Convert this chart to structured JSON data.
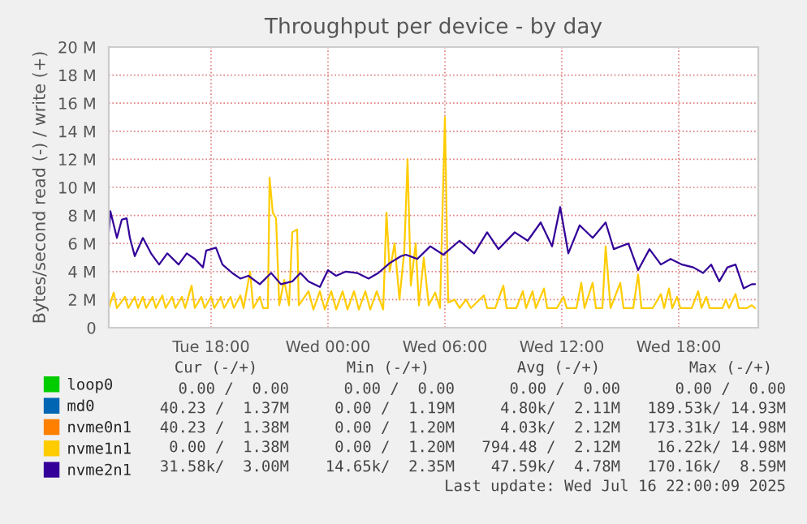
{
  "chart_data": {
    "type": "line",
    "title": "Throughput per device - by day",
    "ylabel": "Bytes/second read (-) / write (+)",
    "x": [
      "2025-07-15T12:45",
      "2025-07-15T13:00",
      "2025-07-15T13:10",
      "2025-07-15T13:35",
      "2025-07-15T13:45",
      "2025-07-15T14:05",
      "2025-07-15T14:15",
      "2025-07-15T14:30",
      "2025-07-15T14:40",
      "2025-07-15T15:00",
      "2025-07-15T15:10",
      "2025-07-15T15:30",
      "2025-07-15T15:40",
      "2025-07-15T16:00",
      "2025-07-15T16:10",
      "2025-07-15T16:30",
      "2025-07-15T16:40",
      "2025-07-15T17:00",
      "2025-07-15T17:10",
      "2025-07-15T17:30",
      "2025-07-15T17:40",
      "2025-07-15T18:00",
      "2025-07-15T18:10",
      "2025-07-15T18:30",
      "2025-07-15T18:40",
      "2025-07-15T19:00",
      "2025-07-15T19:10",
      "2025-07-15T19:30",
      "2025-07-15T19:40",
      "2025-07-15T20:00",
      "2025-07-15T20:10",
      "2025-07-15T20:30",
      "2025-07-15T20:40",
      "2025-07-15T20:55",
      "2025-07-15T21:00",
      "2025-07-15T21:10",
      "2025-07-15T21:20",
      "2025-07-15T21:30",
      "2025-07-15T21:45",
      "2025-07-15T22:00",
      "2025-07-15T22:10",
      "2025-07-15T22:25",
      "2025-07-15T22:30",
      "2025-07-15T23:00",
      "2025-07-15T23:15",
      "2025-07-15T23:35",
      "2025-07-15T23:50",
      "2025-07-16T00:10",
      "2025-07-16T00:25",
      "2025-07-16T00:45",
      "2025-07-16T01:00",
      "2025-07-16T01:20",
      "2025-07-16T01:35",
      "2025-07-16T01:55",
      "2025-07-16T02:10",
      "2025-07-16T02:30",
      "2025-07-16T02:50",
      "2025-07-16T03:00",
      "2025-07-16T03:10",
      "2025-07-16T03:25",
      "2025-07-16T03:40",
      "2025-07-16T03:55",
      "2025-07-16T04:05",
      "2025-07-16T04:15",
      "2025-07-16T04:30",
      "2025-07-16T04:40",
      "2025-07-16T04:55",
      "2025-07-16T05:10",
      "2025-07-16T05:30",
      "2025-07-16T05:45",
      "2025-07-16T06:00",
      "2025-07-16T06:10",
      "2025-07-16T06:30",
      "2025-07-16T06:45",
      "2025-07-16T07:05",
      "2025-07-16T07:20",
      "2025-07-16T08:00",
      "2025-07-16T08:10",
      "2025-07-16T08:35",
      "2025-07-16T09:00",
      "2025-07-16T09:10",
      "2025-07-16T09:40",
      "2025-07-16T10:00",
      "2025-07-16T10:10",
      "2025-07-16T10:30",
      "2025-07-16T10:40",
      "2025-07-16T11:05",
      "2025-07-16T11:15",
      "2025-07-16T11:45",
      "2025-07-16T12:05",
      "2025-07-16T12:15",
      "2025-07-16T12:45",
      "2025-07-16T13:00",
      "2025-07-16T13:10",
      "2025-07-16T13:35",
      "2025-07-16T13:45",
      "2025-07-16T14:05",
      "2025-07-16T14:15",
      "2025-07-16T14:30",
      "2025-07-16T15:00",
      "2025-07-16T15:10",
      "2025-07-16T15:40",
      "2025-07-16T15:55",
      "2025-07-16T16:05",
      "2025-07-16T16:40",
      "2025-07-16T17:05",
      "2025-07-16T17:15",
      "2025-07-16T17:30",
      "2025-07-16T17:40",
      "2025-07-16T17:55",
      "2025-07-16T18:05",
      "2025-07-16T18:40",
      "2025-07-16T19:00",
      "2025-07-16T19:10",
      "2025-07-16T19:25",
      "2025-07-16T19:35",
      "2025-07-16T20:15",
      "2025-07-16T20:25",
      "2025-07-16T20:35",
      "2025-07-16T20:55",
      "2025-07-16T21:05",
      "2025-07-16T21:30",
      "2025-07-16T21:45",
      "2025-07-16T21:55"
    ],
    "series": [
      {
        "name": "loop0",
        "color": "#00cc00",
        "values": [
          null,
          null,
          null,
          null,
          null,
          null,
          null,
          null,
          null,
          null,
          null,
          null,
          null,
          null,
          null,
          null,
          null,
          null,
          null,
          null,
          null,
          null,
          null,
          null,
          null,
          null,
          null,
          null,
          null,
          null,
          null,
          null,
          null,
          null,
          null,
          null,
          null,
          null,
          null,
          null,
          null,
          null,
          null,
          null,
          null,
          null,
          null,
          null,
          null,
          null,
          null,
          null,
          null,
          null,
          null,
          null,
          null,
          null,
          null,
          null,
          null,
          null,
          null,
          null,
          null,
          null,
          null,
          null,
          null,
          null,
          null,
          null,
          null,
          null,
          null,
          null,
          null,
          null,
          null,
          null,
          null,
          null,
          null,
          null,
          null,
          null,
          null,
          null,
          null,
          null,
          null,
          null,
          null,
          null,
          null,
          null,
          null,
          null,
          null,
          null,
          null,
          null,
          null,
          null,
          null,
          null,
          null,
          null,
          null,
          null,
          null,
          null,
          null,
          null,
          null,
          null,
          null,
          null,
          null,
          null,
          null,
          null,
          null,
          null
        ]
      },
      {
        "name": "md0",
        "color": "#0066b3",
        "values": [
          null,
          null,
          null,
          null,
          null,
          null,
          null,
          null,
          null,
          null,
          null,
          null,
          null,
          null,
          null,
          null,
          null,
          null,
          null,
          null,
          null,
          null,
          null,
          null,
          null,
          null,
          null,
          null,
          null,
          null,
          null,
          null,
          null,
          null,
          null,
          null,
          null,
          null,
          null,
          null,
          null,
          null,
          null,
          null,
          null,
          null,
          null,
          null,
          null,
          null,
          null,
          null,
          null,
          null,
          null,
          null,
          null,
          null,
          null,
          null,
          null,
          null,
          null,
          null,
          null,
          null,
          null,
          null,
          null,
          null,
          null,
          null,
          null,
          null,
          null,
          null,
          null,
          null,
          null,
          null,
          null,
          null,
          null,
          null,
          null,
          null,
          null,
          null,
          null,
          null,
          null,
          null,
          null,
          null,
          null,
          null,
          null,
          null,
          null,
          null,
          null,
          null,
          null,
          null,
          null,
          null,
          null,
          null,
          null,
          null,
          null,
          null,
          null,
          null,
          null,
          null,
          null,
          null,
          null,
          null,
          null,
          null,
          null,
          null
        ]
      },
      {
        "name": "nvme0n1",
        "color": "#ff8000",
        "values": [
          null,
          null,
          null,
          null,
          null,
          null,
          null,
          null,
          null,
          null,
          null,
          null,
          null,
          null,
          null,
          null,
          null,
          null,
          null,
          null,
          null,
          null,
          null,
          null,
          null,
          null,
          null,
          null,
          null,
          null,
          null,
          null,
          null,
          null,
          null,
          null,
          null,
          null,
          null,
          null,
          null,
          null,
          null,
          null,
          null,
          null,
          null,
          null,
          null,
          null,
          null,
          null,
          null,
          null,
          null,
          null,
          null,
          null,
          null,
          null,
          null,
          null,
          null,
          null,
          null,
          null,
          null,
          null,
          null,
          null,
          null,
          null,
          null,
          null,
          null,
          null,
          null,
          null,
          null,
          null,
          null,
          null,
          null,
          null,
          null,
          null,
          null,
          null,
          null,
          null,
          null,
          null,
          null,
          null,
          null,
          null,
          null,
          null,
          null,
          null,
          null,
          null,
          null,
          null,
          null,
          null,
          null,
          null,
          null,
          null,
          null,
          null,
          null,
          null,
          null,
          null,
          null,
          null,
          null,
          null,
          null,
          null,
          null,
          null
        ]
      },
      {
        "name": "nvme1n1",
        "color": "#ffcc00",
        "values": [
          1.4,
          2.5,
          1.4,
          2.2,
          1.4,
          2.2,
          1.4,
          2.2,
          1.4,
          2.2,
          1.4,
          2.3,
          1.4,
          2.2,
          1.4,
          2.2,
          1.4,
          3.0,
          1.4,
          2.2,
          1.4,
          2.2,
          1.4,
          2.2,
          1.4,
          2.2,
          1.4,
          2.3,
          1.4,
          4.0,
          1.4,
          2.2,
          1.4,
          1.4,
          10.7,
          8.2,
          7.8,
          1.6,
          3.4,
          1.6,
          6.8,
          7.0,
          1.6,
          2.6,
          1.3,
          2.6,
          1.3,
          2.6,
          1.3,
          2.6,
          1.3,
          2.6,
          1.3,
          2.6,
          1.3,
          2.6,
          1.3,
          8.2,
          4.0,
          6.0,
          2.0,
          5.5,
          12.0,
          3.0,
          6.0,
          1.6,
          5.0,
          1.6,
          2.5,
          1.4,
          15.0,
          1.8,
          2.0,
          1.4,
          2.0,
          1.4,
          2.3,
          1.4,
          1.4,
          3.0,
          1.4,
          1.4,
          2.6,
          1.4,
          2.6,
          1.4,
          2.8,
          1.4,
          1.4,
          2.2,
          1.4,
          1.4,
          3.2,
          1.4,
          3.2,
          1.4,
          1.4,
          5.8,
          1.4,
          3.2,
          1.4,
          1.4,
          3.8,
          1.4,
          1.4,
          2.4,
          1.4,
          2.8,
          1.4,
          2.2,
          1.4,
          1.4,
          2.6,
          1.4,
          2.2,
          1.4,
          1.4,
          2.0,
          1.4,
          2.4,
          1.4,
          1.4,
          1.6,
          1.4
        ]
      },
      {
        "name": "nvme2n1",
        "color": "#330099",
        "x": [
          "2025-07-15T12:45",
          "2025-07-15T12:50",
          "2025-07-15T13:10",
          "2025-07-15T13:25",
          "2025-07-15T13:40",
          "2025-07-15T13:50",
          "2025-07-15T14:05",
          "2025-07-15T14:30",
          "2025-07-15T14:55",
          "2025-07-15T15:20",
          "2025-07-15T15:45",
          "2025-07-15T16:20",
          "2025-07-15T16:45",
          "2025-07-15T17:10",
          "2025-07-15T17:35",
          "2025-07-15T17:45",
          "2025-07-15T18:15",
          "2025-07-15T18:35",
          "2025-07-15T19:05",
          "2025-07-15T19:30",
          "2025-07-15T19:55",
          "2025-07-15T20:30",
          "2025-07-15T21:05",
          "2025-07-15T21:35",
          "2025-07-15T22:10",
          "2025-07-15T22:35",
          "2025-07-15T23:00",
          "2025-07-15T23:35",
          "2025-07-16T00:00",
          "2025-07-16T00:25",
          "2025-07-16T00:55",
          "2025-07-16T01:30",
          "2025-07-16T02:05",
          "2025-07-16T02:35",
          "2025-07-16T03:10",
          "2025-07-16T03:45",
          "2025-07-16T04:00",
          "2025-07-16T04:35",
          "2025-07-16T05:15",
          "2025-07-16T05:55",
          "2025-07-16T06:45",
          "2025-07-16T07:30",
          "2025-07-16T08:10",
          "2025-07-16T08:45",
          "2025-07-16T09:35",
          "2025-07-16T10:15",
          "2025-07-16T10:55",
          "2025-07-16T11:30",
          "2025-07-16T11:55",
          "2025-07-16T12:20",
          "2025-07-16T12:55",
          "2025-07-16T13:35",
          "2025-07-16T14:15",
          "2025-07-16T14:40",
          "2025-07-16T15:25",
          "2025-07-16T15:55",
          "2025-07-16T16:30",
          "2025-07-16T17:05",
          "2025-07-16T17:35",
          "2025-07-16T18:10",
          "2025-07-16T18:45",
          "2025-07-16T19:15",
          "2025-07-16T19:40",
          "2025-07-16T20:05",
          "2025-07-16T20:30",
          "2025-07-16T20:55",
          "2025-07-16T21:20",
          "2025-07-16T21:45",
          "2025-07-16T21:55"
        ],
        "values": [
          6.8,
          8.3,
          6.4,
          7.7,
          7.8,
          6.4,
          5.1,
          6.4,
          5.3,
          4.5,
          5.3,
          4.5,
          5.3,
          4.9,
          4.3,
          5.5,
          5.7,
          4.5,
          3.9,
          3.5,
          3.7,
          3.1,
          3.9,
          3.1,
          3.3,
          3.9,
          3.3,
          2.9,
          4.1,
          3.7,
          4.0,
          3.9,
          3.5,
          3.9,
          4.6,
          5.1,
          5.2,
          4.9,
          5.8,
          5.2,
          6.2,
          5.3,
          6.8,
          5.6,
          6.8,
          6.2,
          7.5,
          5.8,
          8.6,
          5.3,
          7.3,
          6.4,
          7.5,
          5.6,
          6.0,
          4.1,
          5.6,
          4.5,
          4.9,
          4.5,
          4.3,
          3.9,
          4.5,
          3.3,
          4.3,
          4.5,
          2.8,
          3.1,
          3.1
        ]
      }
    ],
    "xlim": [
      "2025-07-15T12:45",
      "2025-07-16T22:05"
    ],
    "xticks": [
      {
        "value": "2025-07-15T18:00",
        "label": "Tue 18:00"
      },
      {
        "value": "2025-07-16T00:00",
        "label": "Wed 00:00"
      },
      {
        "value": "2025-07-16T06:00",
        "label": "Wed 06:00"
      },
      {
        "value": "2025-07-16T12:00",
        "label": "Wed 12:00"
      },
      {
        "value": "2025-07-16T18:00",
        "label": "Wed 18:00"
      }
    ],
    "ylim": [
      0,
      20
    ],
    "yticks": [
      0,
      {
        "value": 2,
        "label": "2 M"
      },
      {
        "value": 4,
        "label": "4 M"
      },
      {
        "value": 6,
        "label": "6 M"
      },
      {
        "value": 8,
        "label": "8 M"
      },
      {
        "value": 10,
        "label": "10 M"
      },
      {
        "value": 12,
        "label": "12 M"
      },
      {
        "value": 14,
        "label": "14 M"
      },
      {
        "value": 16,
        "label": "16 M"
      },
      {
        "value": 18,
        "label": "18 M"
      },
      {
        "value": 20,
        "label": "20 M"
      }
    ],
    "grid": true,
    "legend": "bottom left",
    "marker": "none",
    "line_style": "solid",
    "annotations": [
      "Cur (-/+)",
      "Min (-/+)",
      "Avg (-/+)",
      "Max (-/+)",
      "0.00 /  0.00",
      "0.00 /  0.00",
      "0.00 /  0.00",
      "0.00 /  0.00",
      "40.23 /  1.37M",
      "0.00 /  1.19M",
      "4.80k/  2.11M",
      "189.53k/ 14.93M",
      "40.23 /  1.38M",
      "0.00 /  1.20M",
      "4.03k/  2.12M",
      "173.31k/ 14.98M",
      "0.00 /  1.38M",
      "0.00 /  1.20M",
      "794.48 /  2.12M",
      "16.22k/ 14.98M",
      "31.58k/  3.00M",
      "14.65k/  2.35M",
      "47.59k/  4.78M",
      "170.16k/  8.59M",
      "Last update: Wed Jul 16 22:00:09 2025"
    ]
  }
}
